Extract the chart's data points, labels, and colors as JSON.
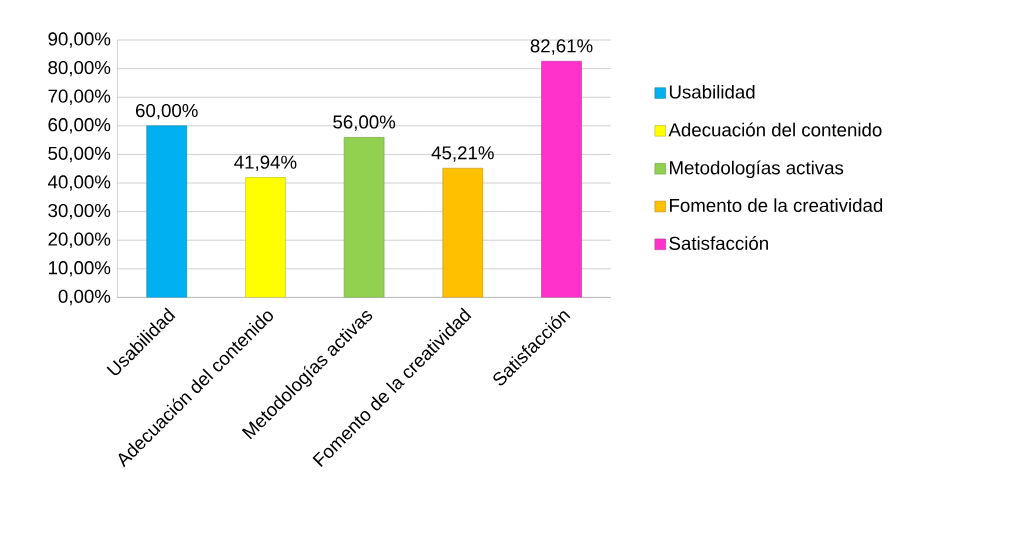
{
  "chart_data": {
    "type": "bar",
    "categories": [
      "Usabilidad",
      "Adecuación del contenido",
      "Metodologías activas",
      "Fomento de la creatividad",
      "Satisfacción"
    ],
    "series": [
      {
        "name": "Usabilidad",
        "color": "#00b0f0",
        "values": [
          60.0,
          null,
          null,
          null,
          null
        ],
        "value_labels": [
          "60,00%",
          null,
          null,
          null,
          null
        ]
      },
      {
        "name": "Adecuación del contenido",
        "color": "#ffff00",
        "values": [
          null,
          41.94,
          null,
          null,
          null
        ],
        "value_labels": [
          null,
          "41,94%",
          null,
          null,
          null
        ]
      },
      {
        "name": "Metodologías activas",
        "color": "#92d050",
        "values": [
          null,
          null,
          56.0,
          null,
          null
        ],
        "value_labels": [
          null,
          null,
          "56,00%",
          null,
          null
        ]
      },
      {
        "name": "Fomento de la creatividad",
        "color": "#ffc000",
        "values": [
          null,
          null,
          null,
          45.21,
          null
        ],
        "value_labels": [
          null,
          null,
          null,
          "45,21%",
          null
        ]
      },
      {
        "name": "Satisfacción",
        "color": "#ff33cc",
        "values": [
          null,
          null,
          null,
          null,
          82.61
        ],
        "value_labels": [
          null,
          null,
          null,
          null,
          "82,61%"
        ]
      }
    ],
    "ylim": [
      0,
      90
    ],
    "yticks": [
      {
        "value": 0,
        "label": "0,00%"
      },
      {
        "value": 10,
        "label": "10,00%"
      },
      {
        "value": 20,
        "label": "20,00%"
      },
      {
        "value": 30,
        "label": "30,00%"
      },
      {
        "value": 40,
        "label": "40,00%"
      },
      {
        "value": 50,
        "label": "50,00%"
      },
      {
        "value": 60,
        "label": "60,00%"
      },
      {
        "value": 70,
        "label": "70,00%"
      },
      {
        "value": 80,
        "label": "80,00%"
      },
      {
        "value": 90,
        "label": "90,00%"
      }
    ],
    "grid": "y",
    "legend": "right"
  }
}
